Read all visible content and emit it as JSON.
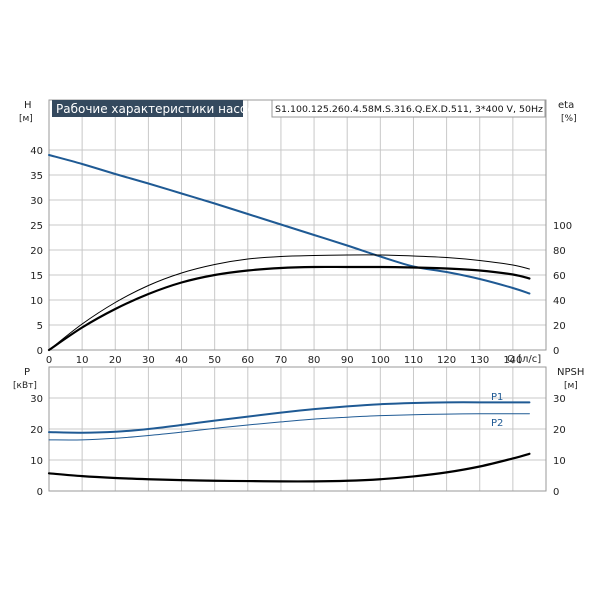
{
  "title": "Рабочие характеристики насоса",
  "model": "S1.100.125.260.4.58M.S.316.Q.EX.D.511, 3*400 V, 50Hz",
  "colors": {
    "blue": "#1f5a94",
    "black": "#000000",
    "grid": "#c8c8c8",
    "title_bg": "#34495e"
  },
  "chart_data": [
    {
      "type": "line",
      "name": "upper",
      "x_unit": "Q [л/с]",
      "xlim": [
        0,
        150
      ],
      "xticks": [
        0,
        10,
        20,
        30,
        40,
        50,
        60,
        70,
        80,
        90,
        100,
        110,
        120,
        130,
        140
      ],
      "left_axis": {
        "label": "H",
        "unit": "[м]",
        "ylim": [
          0,
          50
        ],
        "ticks": [
          0,
          5,
          10,
          15,
          20,
          25,
          30,
          35,
          40
        ]
      },
      "right_axis": {
        "label": "eta",
        "unit": "[%]",
        "ylim": [
          0,
          200
        ],
        "ticks": [
          0,
          20,
          40,
          60,
          80,
          100
        ]
      },
      "series": [
        {
          "axis": "left",
          "color": "#1f5a94",
          "width": 2,
          "x": [
            0,
            10,
            20,
            30,
            40,
            50,
            60,
            70,
            80,
            90,
            100,
            110,
            120,
            130,
            140,
            145
          ],
          "y": [
            39,
            37.2,
            35.2,
            33.3,
            31.3,
            29.3,
            27.2,
            25.1,
            23.0,
            20.9,
            18.7,
            16.7,
            15.6,
            14.2,
            12.4,
            11.3
          ]
        },
        {
          "axis": "left",
          "color": "#000000",
          "width": 2.2,
          "x": [
            0,
            10,
            20,
            30,
            40,
            50,
            60,
            70,
            80,
            90,
            100,
            110,
            120,
            130,
            140,
            145
          ],
          "y": [
            0,
            4.5,
            8.2,
            11.2,
            13.5,
            15.0,
            15.9,
            16.4,
            16.6,
            16.6,
            16.6,
            16.5,
            16.3,
            15.9,
            15.1,
            14.3
          ]
        },
        {
          "axis": "left",
          "color": "#000000",
          "width": 1,
          "x": [
            0,
            10,
            20,
            30,
            40,
            50,
            60,
            70,
            80,
            90,
            100,
            110,
            120,
            130,
            140,
            145
          ],
          "y": [
            0,
            5.2,
            9.5,
            12.9,
            15.4,
            17.1,
            18.2,
            18.7,
            18.9,
            19.0,
            19.0,
            18.8,
            18.5,
            17.9,
            17.0,
            16.2
          ]
        }
      ]
    },
    {
      "type": "line",
      "name": "lower",
      "xlim": [
        0,
        150
      ],
      "left_axis": {
        "label": "P",
        "unit": "[кВт]",
        "ylim": [
          0,
          40
        ],
        "ticks": [
          0,
          10,
          20,
          30
        ]
      },
      "right_axis": {
        "label": "NPSH",
        "unit": "[м]",
        "ylim": [
          0,
          40
        ],
        "ticks": [
          0,
          10,
          20,
          30
        ]
      },
      "series": [
        {
          "name": "P1",
          "axis": "left",
          "color": "#1f5a94",
          "width": 2,
          "x": [
            0,
            10,
            20,
            30,
            40,
            50,
            60,
            70,
            80,
            90,
            100,
            110,
            120,
            130,
            140,
            145
          ],
          "y": [
            19,
            18.8,
            19.1,
            20.0,
            21.3,
            22.7,
            24.0,
            25.3,
            26.4,
            27.3,
            28.0,
            28.4,
            28.6,
            28.6,
            28.6,
            28.6
          ]
        },
        {
          "name": "P2",
          "axis": "left",
          "color": "#1f5a94",
          "width": 1,
          "x": [
            0,
            10,
            20,
            30,
            40,
            50,
            60,
            70,
            80,
            90,
            100,
            110,
            120,
            130,
            140,
            145
          ],
          "y": [
            16.5,
            16.5,
            17.0,
            17.9,
            19.0,
            20.2,
            21.3,
            22.3,
            23.2,
            23.8,
            24.3,
            24.6,
            24.8,
            24.9,
            24.9,
            24.9
          ]
        },
        {
          "axis": "right",
          "color": "#000000",
          "width": 2.2,
          "x": [
            0,
            10,
            20,
            30,
            40,
            50,
            60,
            70,
            80,
            90,
            100,
            110,
            120,
            130,
            140,
            145
          ],
          "y": [
            5.7,
            4.8,
            4.2,
            3.8,
            3.5,
            3.3,
            3.2,
            3.1,
            3.1,
            3.3,
            3.8,
            4.7,
            6.0,
            7.9,
            10.5,
            12.0
          ]
        }
      ]
    }
  ]
}
